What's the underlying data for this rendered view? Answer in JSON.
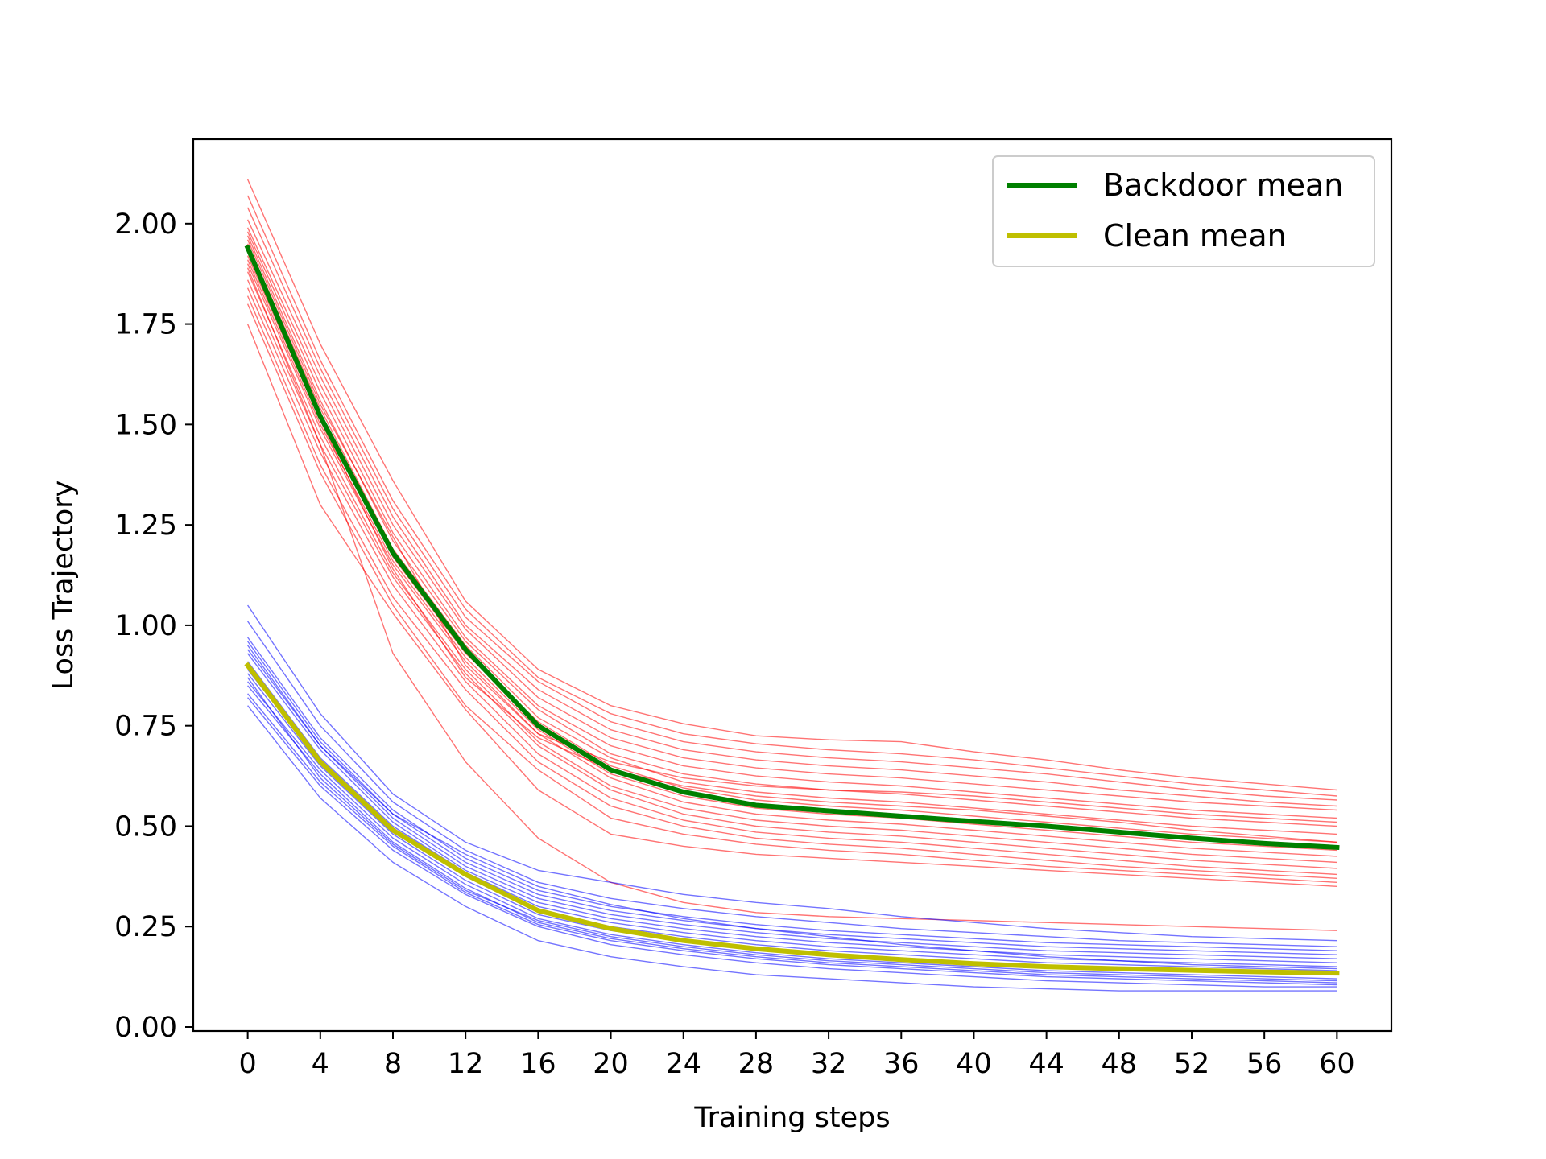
{
  "chart_data": {
    "type": "line",
    "title": "",
    "xlabel": "Training steps",
    "ylabel": "Loss Trajectory",
    "xlim": [
      -3,
      63
    ],
    "ylim": [
      -0.01,
      2.21
    ],
    "x": [
      0,
      4,
      8,
      12,
      16,
      20,
      24,
      28,
      32,
      36,
      40,
      44,
      48,
      52,
      56,
      60
    ],
    "xticks": [
      "0",
      "4",
      "8",
      "12",
      "16",
      "20",
      "24",
      "28",
      "32",
      "36",
      "40",
      "44",
      "48",
      "52",
      "56",
      "60"
    ],
    "yticks": [
      "0.00",
      "0.25",
      "0.50",
      "0.75",
      "1.00",
      "1.25",
      "1.50",
      "1.75",
      "2.00"
    ],
    "grid": false,
    "legend_position": "top-right",
    "legend": [
      {
        "label": "Backdoor mean",
        "color": "#008000"
      },
      {
        "label": "Clean mean",
        "color": "#bfbf00"
      }
    ],
    "backdoor_mean": {
      "name": "Backdoor mean",
      "color": "#008000",
      "values": [
        1.94,
        1.52,
        1.18,
        0.94,
        0.75,
        0.64,
        0.585,
        0.552,
        0.538,
        0.525,
        0.512,
        0.5,
        0.485,
        0.47,
        0.457,
        0.447
      ]
    },
    "clean_mean": {
      "name": "Clean mean",
      "color": "#bfbf00",
      "values": [
        0.9,
        0.66,
        0.49,
        0.38,
        0.29,
        0.245,
        0.215,
        0.195,
        0.18,
        0.168,
        0.158,
        0.15,
        0.145,
        0.141,
        0.137,
        0.134
      ]
    },
    "backdoor_runs_color": "#ff0000",
    "clean_runs_color": "#0000ff",
    "backdoor_runs": [
      [
        2.11,
        1.7,
        1.36,
        1.06,
        0.89,
        0.8,
        0.755,
        0.725,
        0.715,
        0.71,
        0.685,
        0.665,
        0.64,
        0.62,
        0.605,
        0.59
      ],
      [
        2.07,
        1.66,
        1.31,
        1.04,
        0.87,
        0.78,
        0.73,
        0.705,
        0.69,
        0.68,
        0.665,
        0.645,
        0.625,
        0.605,
        0.59,
        0.575
      ],
      [
        2.04,
        1.64,
        1.29,
        1.02,
        0.86,
        0.76,
        0.71,
        0.685,
        0.67,
        0.66,
        0.645,
        0.63,
        0.61,
        0.59,
        0.575,
        0.565
      ],
      [
        2.01,
        1.62,
        1.27,
        1.0,
        0.84,
        0.74,
        0.69,
        0.665,
        0.65,
        0.64,
        0.625,
        0.61,
        0.59,
        0.575,
        0.56,
        0.55
      ],
      [
        1.99,
        1.6,
        1.25,
        0.99,
        0.82,
        0.72,
        0.67,
        0.645,
        0.63,
        0.62,
        0.605,
        0.59,
        0.575,
        0.56,
        0.55,
        0.54
      ],
      [
        1.98,
        1.58,
        1.23,
        0.97,
        0.8,
        0.7,
        0.65,
        0.625,
        0.61,
        0.6,
        0.585,
        0.57,
        0.555,
        0.54,
        0.53,
        0.52
      ],
      [
        1.97,
        1.56,
        1.21,
        0.96,
        0.79,
        0.68,
        0.63,
        0.605,
        0.59,
        0.58,
        0.565,
        0.55,
        0.535,
        0.52,
        0.51,
        0.5
      ],
      [
        1.95,
        1.54,
        1.19,
        0.95,
        0.77,
        0.67,
        0.61,
        0.585,
        0.57,
        0.56,
        0.545,
        0.53,
        0.515,
        0.5,
        0.49,
        0.48
      ],
      [
        1.93,
        1.52,
        1.17,
        0.93,
        0.76,
        0.65,
        0.595,
        0.565,
        0.55,
        0.54,
        0.525,
        0.51,
        0.495,
        0.48,
        0.47,
        0.46
      ],
      [
        1.91,
        1.5,
        1.16,
        0.92,
        0.74,
        0.63,
        0.575,
        0.545,
        0.53,
        0.52,
        0.505,
        0.49,
        0.475,
        0.46,
        0.45,
        0.44
      ],
      [
        1.9,
        1.49,
        1.15,
        0.91,
        0.73,
        0.62,
        0.56,
        0.53,
        0.515,
        0.505,
        0.49,
        0.475,
        0.46,
        0.445,
        0.435,
        0.425
      ],
      [
        1.88,
        1.47,
        1.13,
        0.89,
        0.71,
        0.6,
        0.545,
        0.515,
        0.5,
        0.49,
        0.475,
        0.46,
        0.445,
        0.43,
        0.42,
        0.41
      ],
      [
        1.86,
        1.45,
        1.12,
        0.88,
        0.7,
        0.59,
        0.53,
        0.5,
        0.485,
        0.475,
        0.46,
        0.445,
        0.43,
        0.415,
        0.405,
        0.395
      ],
      [
        1.84,
        1.43,
        1.1,
        0.86,
        0.68,
        0.57,
        0.515,
        0.485,
        0.47,
        0.46,
        0.445,
        0.43,
        0.415,
        0.4,
        0.39,
        0.38
      ],
      [
        1.82,
        1.4,
        1.07,
        0.84,
        0.66,
        0.55,
        0.5,
        0.47,
        0.455,
        0.445,
        0.43,
        0.415,
        0.4,
        0.39,
        0.38,
        0.37
      ],
      [
        1.8,
        1.38,
        1.05,
        0.8,
        0.64,
        0.52,
        0.48,
        0.455,
        0.44,
        0.43,
        0.415,
        0.4,
        0.39,
        0.38,
        0.37,
        0.36
      ],
      [
        1.75,
        1.3,
        1.03,
        0.79,
        0.59,
        0.48,
        0.45,
        0.43,
        0.42,
        0.41,
        0.4,
        0.39,
        0.38,
        0.37,
        0.36,
        0.35
      ],
      [
        1.89,
        1.45,
        0.93,
        0.66,
        0.47,
        0.36,
        0.31,
        0.285,
        0.275,
        0.27,
        0.265,
        0.26,
        0.255,
        0.25,
        0.245,
        0.24
      ],
      [
        1.96,
        1.55,
        1.22,
        0.9,
        0.73,
        0.66,
        0.62,
        0.6,
        0.59,
        0.585,
        0.575,
        0.56,
        0.545,
        0.53,
        0.52,
        0.51
      ],
      [
        1.92,
        1.51,
        1.14,
        0.87,
        0.72,
        0.64,
        0.6,
        0.575,
        0.56,
        0.55,
        0.54,
        0.525,
        0.51,
        0.49,
        0.475,
        0.46
      ]
    ],
    "clean_runs": [
      [
        1.05,
        0.78,
        0.58,
        0.46,
        0.39,
        0.36,
        0.33,
        0.31,
        0.295,
        0.275,
        0.26,
        0.245,
        0.235,
        0.225,
        0.22,
        0.215
      ],
      [
        1.01,
        0.75,
        0.56,
        0.44,
        0.36,
        0.32,
        0.295,
        0.275,
        0.26,
        0.245,
        0.235,
        0.225,
        0.215,
        0.21,
        0.205,
        0.2
      ],
      [
        0.97,
        0.72,
        0.54,
        0.42,
        0.34,
        0.3,
        0.275,
        0.255,
        0.24,
        0.23,
        0.22,
        0.21,
        0.205,
        0.2,
        0.195,
        0.19
      ],
      [
        0.96,
        0.71,
        0.53,
        0.41,
        0.33,
        0.29,
        0.265,
        0.245,
        0.23,
        0.22,
        0.21,
        0.2,
        0.195,
        0.19,
        0.185,
        0.18
      ],
      [
        0.95,
        0.7,
        0.52,
        0.4,
        0.32,
        0.28,
        0.255,
        0.235,
        0.22,
        0.21,
        0.2,
        0.19,
        0.185,
        0.18,
        0.175,
        0.17
      ],
      [
        0.93,
        0.69,
        0.51,
        0.39,
        0.31,
        0.27,
        0.245,
        0.225,
        0.21,
        0.2,
        0.19,
        0.18,
        0.175,
        0.17,
        0.165,
        0.16
      ],
      [
        0.91,
        0.67,
        0.5,
        0.385,
        0.3,
        0.26,
        0.235,
        0.215,
        0.2,
        0.19,
        0.18,
        0.17,
        0.165,
        0.16,
        0.155,
        0.15
      ],
      [
        0.89,
        0.66,
        0.49,
        0.375,
        0.29,
        0.25,
        0.225,
        0.205,
        0.19,
        0.18,
        0.17,
        0.16,
        0.155,
        0.15,
        0.145,
        0.14
      ],
      [
        0.88,
        0.65,
        0.48,
        0.365,
        0.28,
        0.24,
        0.215,
        0.195,
        0.18,
        0.17,
        0.16,
        0.15,
        0.145,
        0.14,
        0.135,
        0.13
      ],
      [
        0.86,
        0.64,
        0.47,
        0.355,
        0.27,
        0.23,
        0.205,
        0.185,
        0.17,
        0.16,
        0.15,
        0.14,
        0.135,
        0.13,
        0.125,
        0.12
      ],
      [
        0.85,
        0.63,
        0.46,
        0.345,
        0.26,
        0.22,
        0.195,
        0.175,
        0.16,
        0.15,
        0.14,
        0.13,
        0.125,
        0.12,
        0.115,
        0.11
      ],
      [
        0.83,
        0.61,
        0.45,
        0.335,
        0.255,
        0.215,
        0.19,
        0.17,
        0.155,
        0.145,
        0.135,
        0.125,
        0.12,
        0.115,
        0.11,
        0.105
      ],
      [
        0.82,
        0.6,
        0.44,
        0.33,
        0.25,
        0.205,
        0.18,
        0.16,
        0.145,
        0.135,
        0.125,
        0.115,
        0.11,
        0.105,
        0.1,
        0.1
      ],
      [
        0.8,
        0.57,
        0.41,
        0.3,
        0.215,
        0.175,
        0.15,
        0.13,
        0.12,
        0.11,
        0.1,
        0.095,
        0.09,
        0.09,
        0.09,
        0.09
      ],
      [
        0.94,
        0.7,
        0.53,
        0.43,
        0.35,
        0.305,
        0.27,
        0.245,
        0.225,
        0.205,
        0.19,
        0.175,
        0.165,
        0.155,
        0.15,
        0.145
      ],
      [
        0.87,
        0.62,
        0.455,
        0.34,
        0.265,
        0.225,
        0.2,
        0.18,
        0.165,
        0.155,
        0.145,
        0.135,
        0.13,
        0.125,
        0.12,
        0.115
      ]
    ]
  }
}
